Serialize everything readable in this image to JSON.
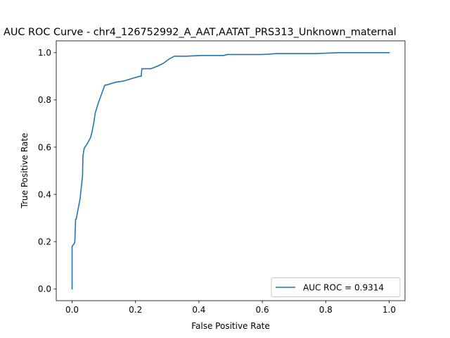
{
  "chart_data": {
    "type": "line",
    "title": "AUC ROC Curve - chr4_126752992_A_AAT,AATAT_PRS313_Unknown_maternal",
    "xlabel": "False Positive Rate",
    "ylabel": "True Positive Rate",
    "xlim": [
      -0.05,
      1.05
    ],
    "ylim": [
      -0.05,
      1.05
    ],
    "xticks": [
      0.0,
      0.2,
      0.4,
      0.6,
      0.8,
      1.0
    ],
    "yticks": [
      0.0,
      0.2,
      0.4,
      0.6,
      0.8,
      1.0
    ],
    "xtick_labels": [
      "0.0",
      "0.2",
      "0.4",
      "0.6",
      "0.8",
      "1.0"
    ],
    "ytick_labels": [
      "0.0",
      "0.2",
      "0.4",
      "0.6",
      "0.8",
      "1.0"
    ],
    "grid": false,
    "legend_position": "lower-right",
    "series": [
      {
        "name": "AUC ROC = 0.9314",
        "color": "#1f77b4",
        "x": [
          0.0,
          0.0,
          0.003,
          0.008,
          0.009,
          0.011,
          0.013,
          0.015,
          0.025,
          0.033,
          0.034,
          0.038,
          0.048,
          0.058,
          0.063,
          0.068,
          0.073,
          0.083,
          0.093,
          0.103,
          0.113,
          0.138,
          0.163,
          0.188,
          0.213,
          0.218,
          0.22,
          0.228,
          0.248,
          0.268,
          0.288,
          0.308,
          0.323,
          0.358,
          0.408,
          0.458,
          0.478,
          0.488,
          0.498,
          0.548,
          0.598,
          0.648,
          0.698,
          0.768,
          0.843,
          1.0
        ],
        "y": [
          0.0,
          0.18,
          0.185,
          0.195,
          0.21,
          0.295,
          0.295,
          0.31,
          0.38,
          0.48,
          0.56,
          0.595,
          0.615,
          0.64,
          0.665,
          0.7,
          0.745,
          0.788,
          0.825,
          0.862,
          0.865,
          0.875,
          0.88,
          0.89,
          0.9,
          0.9,
          0.932,
          0.932,
          0.932,
          0.942,
          0.955,
          0.975,
          0.985,
          0.985,
          0.988,
          0.988,
          0.988,
          0.992,
          0.992,
          0.992,
          0.992,
          0.996,
          0.996,
          0.996,
          1.0,
          1.0
        ]
      }
    ]
  }
}
